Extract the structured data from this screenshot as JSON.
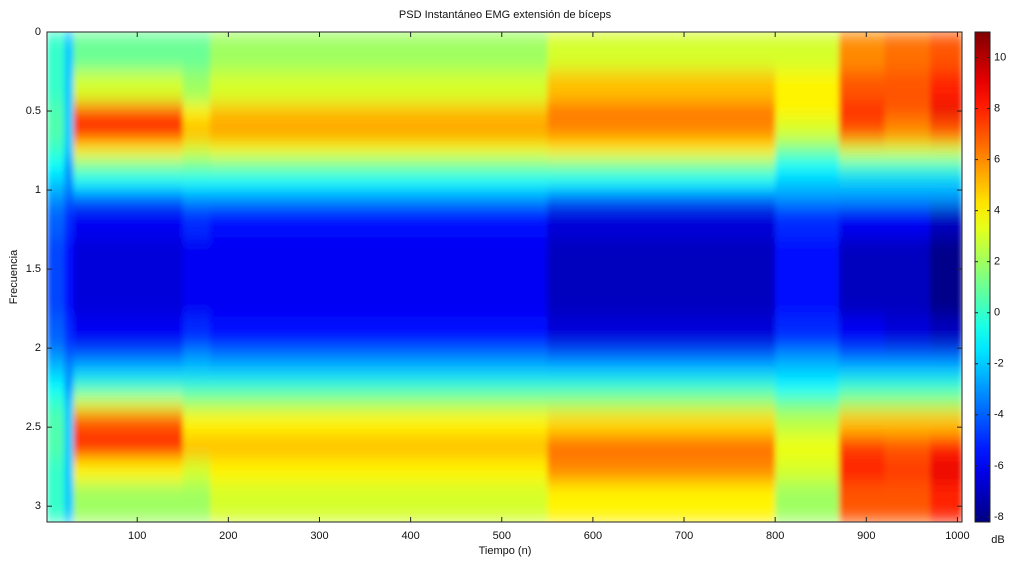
{
  "chart_data": {
    "type": "heatmap",
    "title": "PSD Instantáneo EMG extensión de bíceps",
    "xlabel": "Tiempo (n)",
    "ylabel": "Frecuencia",
    "colorbar_label": "dB",
    "colormap": "jet",
    "x_edges": [
      1,
      20,
      30,
      150,
      180,
      550,
      800,
      870,
      920,
      970,
      1005
    ],
    "y_edges": [
      0,
      0.25,
      0.45,
      0.55,
      0.7,
      0.8,
      0.9,
      1.0,
      1.1,
      1.3,
      1.8,
      2.0,
      2.1,
      2.2,
      2.3,
      2.4,
      2.55,
      2.7,
      2.85,
      3.1
    ],
    "values": [
      [
        0,
        -2,
        1,
        1,
        2,
        3,
        3,
        6,
        6.5,
        7
      ],
      [
        0,
        -2,
        3,
        2,
        3,
        5,
        4,
        7,
        7,
        8
      ],
      [
        0.5,
        -2,
        7,
        4,
        5,
        6.5,
        4,
        8,
        7,
        9
      ],
      [
        0.5,
        -2,
        8,
        5,
        5.5,
        6,
        3,
        7,
        6,
        7
      ],
      [
        0,
        -2,
        4,
        3,
        3.5,
        4,
        1,
        3,
        3,
        3
      ],
      [
        -1,
        -3,
        1,
        1,
        1,
        1,
        -1,
        0,
        0,
        0
      ],
      [
        -2,
        -3,
        -1,
        -1,
        -1,
        -1,
        -2,
        -2,
        -2,
        -2
      ],
      [
        -3,
        -4,
        -4,
        -3,
        -3,
        -4,
        -3,
        -3,
        -3,
        -3
      ],
      [
        -4,
        -5,
        -6,
        -5,
        -5.5,
        -6.5,
        -5,
        -6,
        -6,
        -7
      ],
      [
        -4.5,
        -5.5,
        -6.5,
        -6,
        -6,
        -7,
        -5.5,
        -7,
        -7,
        -8
      ],
      [
        -4,
        -5,
        -6,
        -5,
        -5.5,
        -6.5,
        -5,
        -6,
        -6.5,
        -7
      ],
      [
        -3,
        -4,
        -4,
        -3,
        -3.5,
        -4,
        -3,
        -4,
        -4,
        -4
      ],
      [
        -2,
        -3,
        -2,
        -2,
        -2,
        -2,
        -2,
        -2,
        -2,
        -2
      ],
      [
        -1,
        -3,
        0,
        0,
        0,
        0,
        -1,
        0,
        0,
        0
      ],
      [
        0,
        -2,
        3,
        2,
        2,
        2,
        1,
        2,
        2,
        2
      ],
      [
        0.5,
        -2,
        7,
        4,
        4,
        4.5,
        2.5,
        5,
        5,
        5
      ],
      [
        0.5,
        -2,
        8,
        5,
        5,
        6.5,
        3.5,
        7.5,
        7,
        8
      ],
      [
        0,
        -2,
        4,
        3,
        4,
        6,
        3,
        8,
        7.5,
        9
      ],
      [
        0,
        -2,
        2,
        2,
        3,
        4,
        2,
        7,
        7,
        8
      ]
    ],
    "xlim": [
      1,
      1005
    ],
    "xticks": [
      100,
      200,
      300,
      400,
      500,
      600,
      700,
      800,
      900,
      1000
    ],
    "ylim": [
      0,
      3.1
    ],
    "y_reversed": true,
    "yticks": [
      0,
      0.5,
      1,
      1.5,
      2,
      2.5,
      3
    ],
    "clim": [
      -8.2,
      11
    ],
    "cticks": [
      -8,
      -6,
      -4,
      -2,
      0,
      2,
      4,
      6,
      8,
      10
    ]
  }
}
